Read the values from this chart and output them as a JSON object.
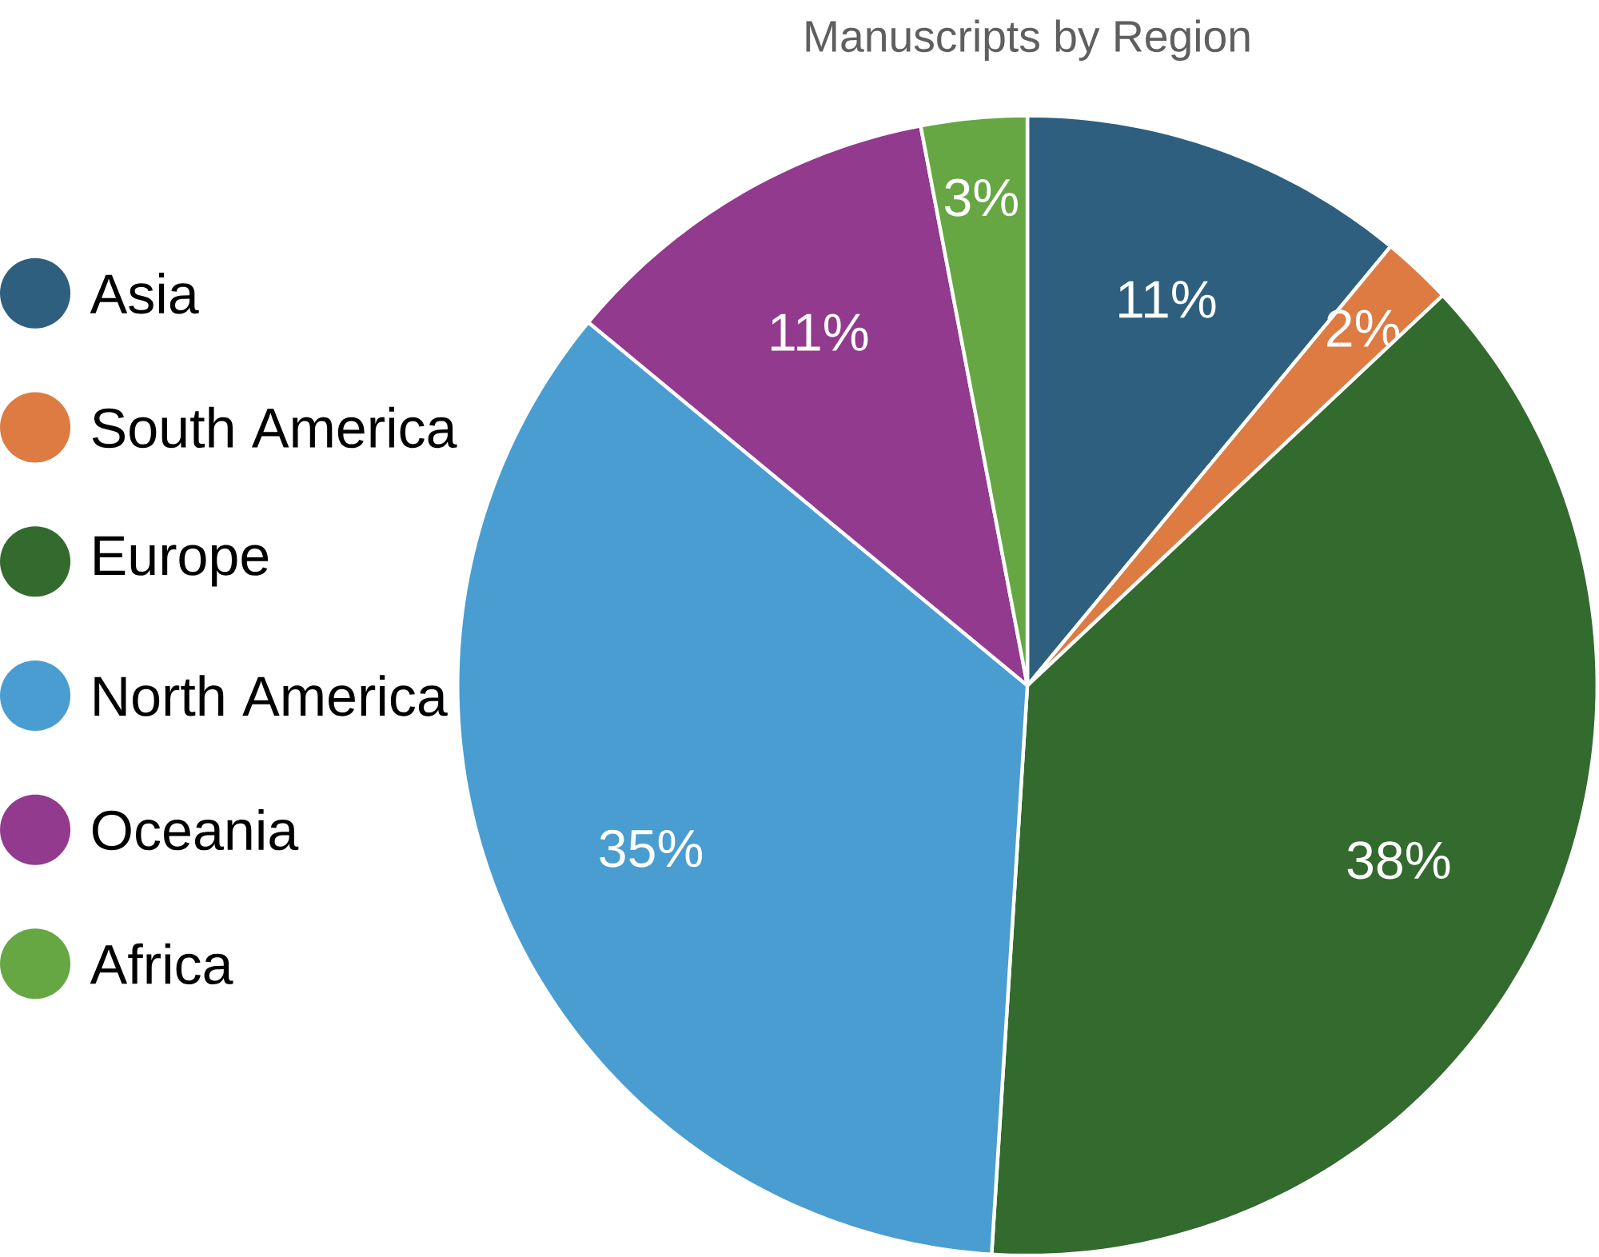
{
  "chart_data": {
    "type": "pie",
    "title": "Manuscripts by Region",
    "categories": [
      "Asia",
      "South America",
      "Europe",
      "North America",
      "Oceania",
      "Africa"
    ],
    "values": [
      11,
      2,
      38,
      35,
      11,
      3
    ],
    "value_labels": [
      "11%",
      "2%",
      "38%",
      "35%",
      "11%",
      "3%"
    ],
    "colors": [
      "#2e5f7f",
      "#dd7b42",
      "#336a2e",
      "#4a9dd1",
      "#923a8d",
      "#66a744"
    ],
    "legend": "left"
  }
}
